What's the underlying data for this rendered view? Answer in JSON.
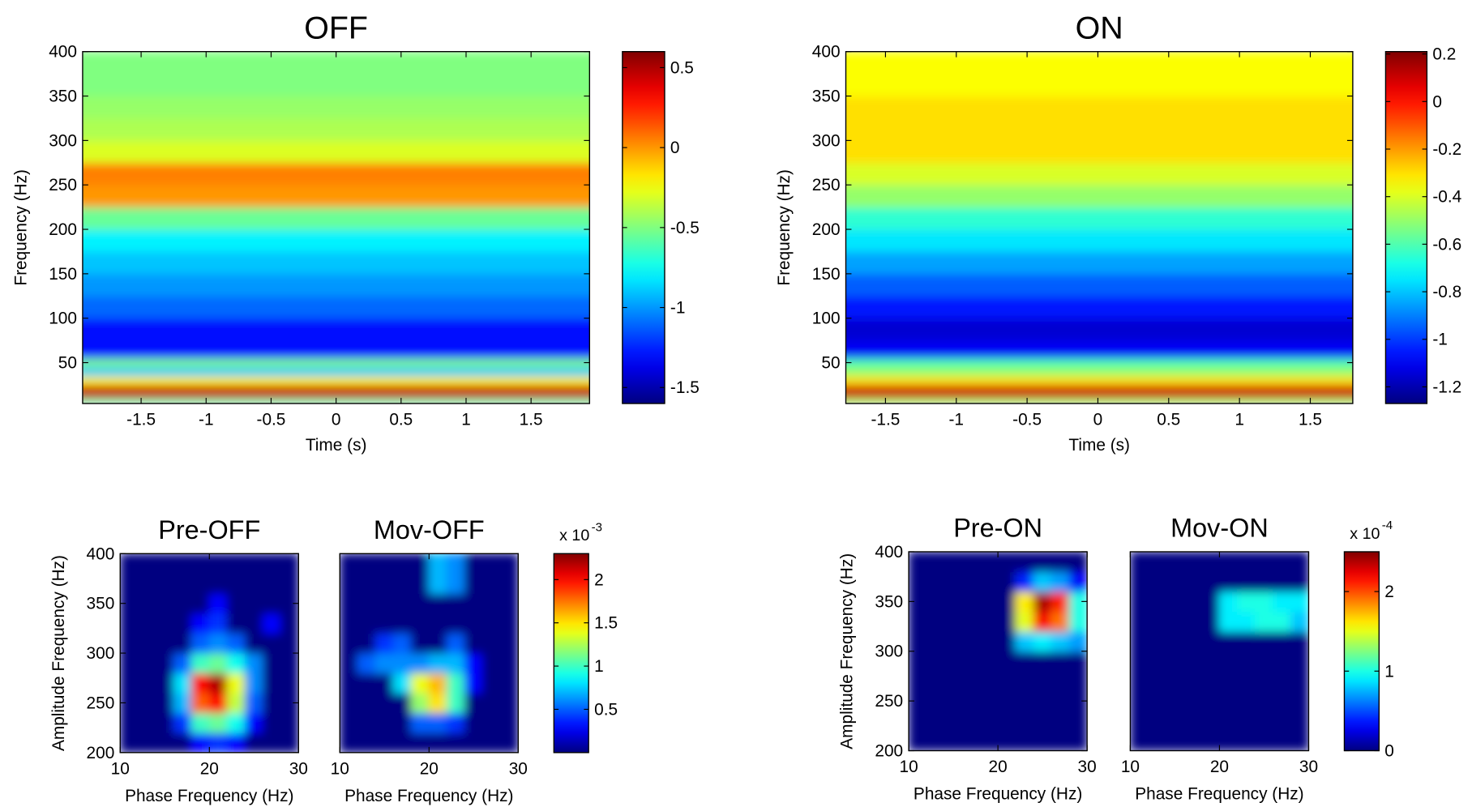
{
  "chart_data": [
    {
      "type": "heatmap",
      "title": "OFF",
      "xlabel": "Time (s)",
      "ylabel": "Frequency (Hz)",
      "xlim": [
        -1.95,
        1.95
      ],
      "ylim": [
        4,
        400
      ],
      "xticks": [
        -1.5,
        -1,
        -0.5,
        0,
        0.5,
        1,
        1.5
      ],
      "yticks": [
        50,
        100,
        150,
        200,
        250,
        300,
        350,
        400
      ],
      "x_edges": [
        -1.95,
        1.95
      ],
      "y_edges": [
        4,
        10,
        25,
        35,
        45,
        55,
        75,
        100,
        125,
        150,
        175,
        200,
        225,
        250,
        275,
        300,
        325,
        350,
        375,
        400
      ],
      "z": [
        [
          -0.6
        ],
        [
          0.45
        ],
        [
          -0.2
        ],
        [
          -0.9
        ],
        [
          -0.5
        ],
        [
          -1.3
        ],
        [
          -1.3
        ],
        [
          -1.1
        ],
        [
          -1.0
        ],
        [
          -0.9
        ],
        [
          -0.8
        ],
        [
          -0.55
        ],
        [
          0.0
        ],
        [
          0.05
        ],
        [
          -0.3
        ],
        [
          -0.4
        ],
        [
          -0.45
        ],
        [
          -0.5
        ],
        [
          -0.5
        ]
      ],
      "clim": [
        -1.6,
        0.6
      ],
      "colorbar_ticks": [
        -1.5,
        -1,
        -0.5,
        0,
        0.5
      ],
      "colormap": "jet"
    },
    {
      "type": "heatmap",
      "title": "ON",
      "xlabel": "Time (s)",
      "ylabel": "Frequency (Hz)",
      "xlim": [
        -1.78,
        1.8
      ],
      "ylim": [
        4,
        400
      ],
      "xticks": [
        -1.5,
        -1,
        -0.5,
        0,
        0.5,
        1,
        1.5
      ],
      "yticks": [
        50,
        100,
        150,
        200,
        250,
        300,
        350,
        400
      ],
      "x_edges": [
        -1.78,
        1.8
      ],
      "y_edges": [
        4,
        10,
        25,
        35,
        45,
        55,
        75,
        100,
        125,
        150,
        175,
        200,
        225,
        250,
        275,
        300,
        325,
        350,
        375,
        400
      ],
      "z": [
        [
          -0.5
        ],
        [
          0.1
        ],
        [
          -0.3
        ],
        [
          -0.5
        ],
        [
          -0.6
        ],
        [
          -1.1
        ],
        [
          -1.15
        ],
        [
          -1.05
        ],
        [
          -0.95
        ],
        [
          -0.85
        ],
        [
          -0.75
        ],
        [
          -0.65
        ],
        [
          -0.5
        ],
        [
          -0.4
        ],
        [
          -0.3
        ],
        [
          -0.3
        ],
        [
          -0.3
        ],
        [
          -0.35
        ],
        [
          -0.35
        ]
      ],
      "clim": [
        -1.27,
        0.21
      ],
      "colorbar_ticks": [
        -1.2,
        -1,
        -0.8,
        -0.6,
        -0.4,
        -0.2,
        0,
        0.2
      ],
      "colormap": "jet"
    },
    {
      "type": "heatmap",
      "title": "Pre-OFF",
      "xlabel": "Phase Frequency (Hz)",
      "ylabel": "Amplitude Frequency (Hz)",
      "xlim": [
        10,
        30
      ],
      "ylim": [
        200,
        400
      ],
      "xticks": [
        10,
        20,
        30
      ],
      "yticks": [
        200,
        250,
        300,
        350,
        400
      ],
      "x_edges": [
        10,
        12,
        14,
        16,
        18,
        20,
        22,
        24,
        26,
        28,
        30
      ],
      "y_edges": [
        200,
        220,
        240,
        260,
        280,
        300,
        320,
        340,
        360,
        380,
        400
      ],
      "z": [
        [
          0,
          0,
          0,
          0,
          0.3,
          0.4,
          0.3,
          0,
          0,
          0
        ],
        [
          0,
          0,
          0,
          0.4,
          1.0,
          1.1,
          0.9,
          0.3,
          0,
          0
        ],
        [
          0,
          0,
          0,
          0.7,
          1.8,
          2.0,
          1.3,
          0.5,
          0,
          0
        ],
        [
          0,
          0,
          0,
          0.8,
          2.0,
          2.2,
          1.4,
          0.6,
          0,
          0
        ],
        [
          0,
          0,
          0,
          0.5,
          1.0,
          1.1,
          0.9,
          0.6,
          0,
          0
        ],
        [
          0,
          0,
          0,
          0,
          0.5,
          0.6,
          0.5,
          0,
          0,
          0
        ],
        [
          0,
          0,
          0,
          0,
          0.3,
          0.4,
          0,
          0,
          0.3,
          0
        ],
        [
          0,
          0,
          0,
          0,
          0,
          0.3,
          0,
          0,
          0,
          0
        ],
        [
          0,
          0,
          0,
          0,
          0,
          0,
          0,
          0,
          0,
          0
        ],
        [
          0,
          0,
          0,
          0,
          0,
          0,
          0,
          0,
          0,
          0
        ]
      ],
      "clim": [
        0,
        2.3
      ],
      "colorbar_ticks": [
        0.5,
        1,
        1.5,
        2
      ],
      "colorbar_scale": "x 10",
      "colorbar_exponent": "-3",
      "colormap": "jet"
    },
    {
      "type": "heatmap",
      "title": "Mov-OFF",
      "xlabel": "Phase Frequency (Hz)",
      "xlim": [
        10,
        30
      ],
      "ylim": [
        200,
        400
      ],
      "xticks": [
        10,
        20,
        30
      ],
      "x_edges": [
        10,
        12,
        14,
        16,
        18,
        20,
        22,
        24,
        26,
        28,
        30
      ],
      "y_edges": [
        200,
        220,
        240,
        260,
        280,
        300,
        320,
        340,
        360,
        380,
        400
      ],
      "z": [
        [
          0,
          0,
          0,
          0,
          0,
          0,
          0,
          0,
          0,
          0
        ],
        [
          0,
          0,
          0,
          0,
          0.5,
          0.5,
          0.4,
          0,
          0,
          0
        ],
        [
          0,
          0,
          0,
          0,
          1.2,
          1.5,
          1.0,
          0,
          0,
          0
        ],
        [
          0,
          0,
          0,
          0.8,
          1.4,
          1.6,
          1.0,
          0.3,
          0,
          0
        ],
        [
          0,
          0.5,
          0.6,
          0.6,
          0.6,
          0.7,
          0.7,
          0.3,
          0,
          0
        ],
        [
          0,
          0,
          0.4,
          0.5,
          0,
          0,
          0.5,
          0,
          0,
          0
        ],
        [
          0,
          0,
          0,
          0,
          0,
          0,
          0,
          0,
          0,
          0
        ],
        [
          0,
          0,
          0,
          0,
          0,
          0,
          0,
          0,
          0,
          0
        ],
        [
          0,
          0,
          0,
          0,
          0,
          0.7,
          0.6,
          0,
          0,
          0
        ],
        [
          0,
          0,
          0,
          0,
          0,
          0.7,
          0.6,
          0,
          0,
          0
        ]
      ],
      "clim": [
        0,
        2.3
      ],
      "colormap": "jet"
    },
    {
      "type": "heatmap",
      "title": "Pre-ON",
      "xlabel": "Phase Frequency (Hz)",
      "ylabel": "Amplitude Frequency (Hz)",
      "xlim": [
        10,
        30
      ],
      "ylim": [
        200,
        400
      ],
      "xticks": [
        10,
        20,
        30
      ],
      "yticks": [
        200,
        250,
        300,
        350,
        400
      ],
      "x_edges": [
        10,
        12,
        14,
        16,
        18,
        20,
        22,
        24,
        26,
        28,
        30
      ],
      "y_edges": [
        200,
        220,
        240,
        260,
        280,
        300,
        320,
        340,
        360,
        380,
        400
      ],
      "z": [
        [
          0,
          0,
          0,
          0,
          0,
          0,
          0,
          0,
          0,
          0
        ],
        [
          0,
          0,
          0,
          0,
          0,
          0,
          0,
          0,
          0,
          0
        ],
        [
          0,
          0,
          0,
          0,
          0,
          0,
          0,
          0,
          0,
          0
        ],
        [
          0,
          0,
          0,
          0,
          0,
          0,
          0,
          0,
          0,
          0
        ],
        [
          0,
          0,
          0,
          0,
          0,
          0,
          0,
          0,
          0,
          0
        ],
        [
          0,
          0,
          0,
          0,
          0,
          0,
          0.8,
          0.9,
          0.8,
          0.7
        ],
        [
          0,
          0,
          0,
          0,
          0,
          0,
          1.5,
          2.2,
          1.9,
          1.0
        ],
        [
          0,
          0,
          0,
          0,
          0,
          0,
          1.6,
          2.4,
          2.1,
          1.0
        ],
        [
          0,
          0,
          0,
          0,
          0,
          0,
          0.4,
          0.8,
          0.7,
          0.3
        ],
        [
          0,
          0,
          0,
          0,
          0,
          0,
          0,
          0,
          0,
          0
        ]
      ],
      "clim": [
        0,
        2.5
      ],
      "colorbar_ticks": [
        0,
        1,
        2
      ],
      "colorbar_scale": "x 10",
      "colorbar_exponent": "-4",
      "colormap": "jet"
    },
    {
      "type": "heatmap",
      "title": "Mov-ON",
      "xlabel": "Phase Frequency (Hz)",
      "xlim": [
        10,
        30
      ],
      "ylim": [
        200,
        400
      ],
      "xticks": [
        10,
        20,
        30
      ],
      "x_edges": [
        10,
        12,
        14,
        16,
        18,
        20,
        22,
        24,
        26,
        28,
        30
      ],
      "y_edges": [
        200,
        220,
        240,
        260,
        280,
        300,
        320,
        340,
        360,
        380,
        400
      ],
      "z": [
        [
          0,
          0,
          0,
          0,
          0,
          0,
          0,
          0,
          0,
          0
        ],
        [
          0,
          0,
          0,
          0,
          0,
          0,
          0,
          0,
          0,
          0
        ],
        [
          0,
          0,
          0,
          0,
          0,
          0,
          0,
          0,
          0,
          0
        ],
        [
          0,
          0,
          0,
          0,
          0,
          0,
          0,
          0,
          0,
          0
        ],
        [
          0,
          0,
          0,
          0,
          0,
          0,
          0,
          0,
          0,
          0
        ],
        [
          0,
          0,
          0,
          0,
          0,
          0,
          0,
          0,
          0,
          0
        ],
        [
          0,
          0,
          0,
          0,
          0,
          0.9,
          0.9,
          1.0,
          1.0,
          0.8
        ],
        [
          0,
          0,
          0,
          0,
          0,
          0.9,
          1.0,
          1.0,
          0.9,
          0.9
        ],
        [
          0,
          0,
          0,
          0,
          0,
          0,
          0,
          0,
          0,
          0
        ],
        [
          0,
          0,
          0,
          0,
          0,
          0,
          0,
          0,
          0,
          0
        ]
      ],
      "clim": [
        0,
        2.5
      ],
      "colormap": "jet"
    }
  ]
}
